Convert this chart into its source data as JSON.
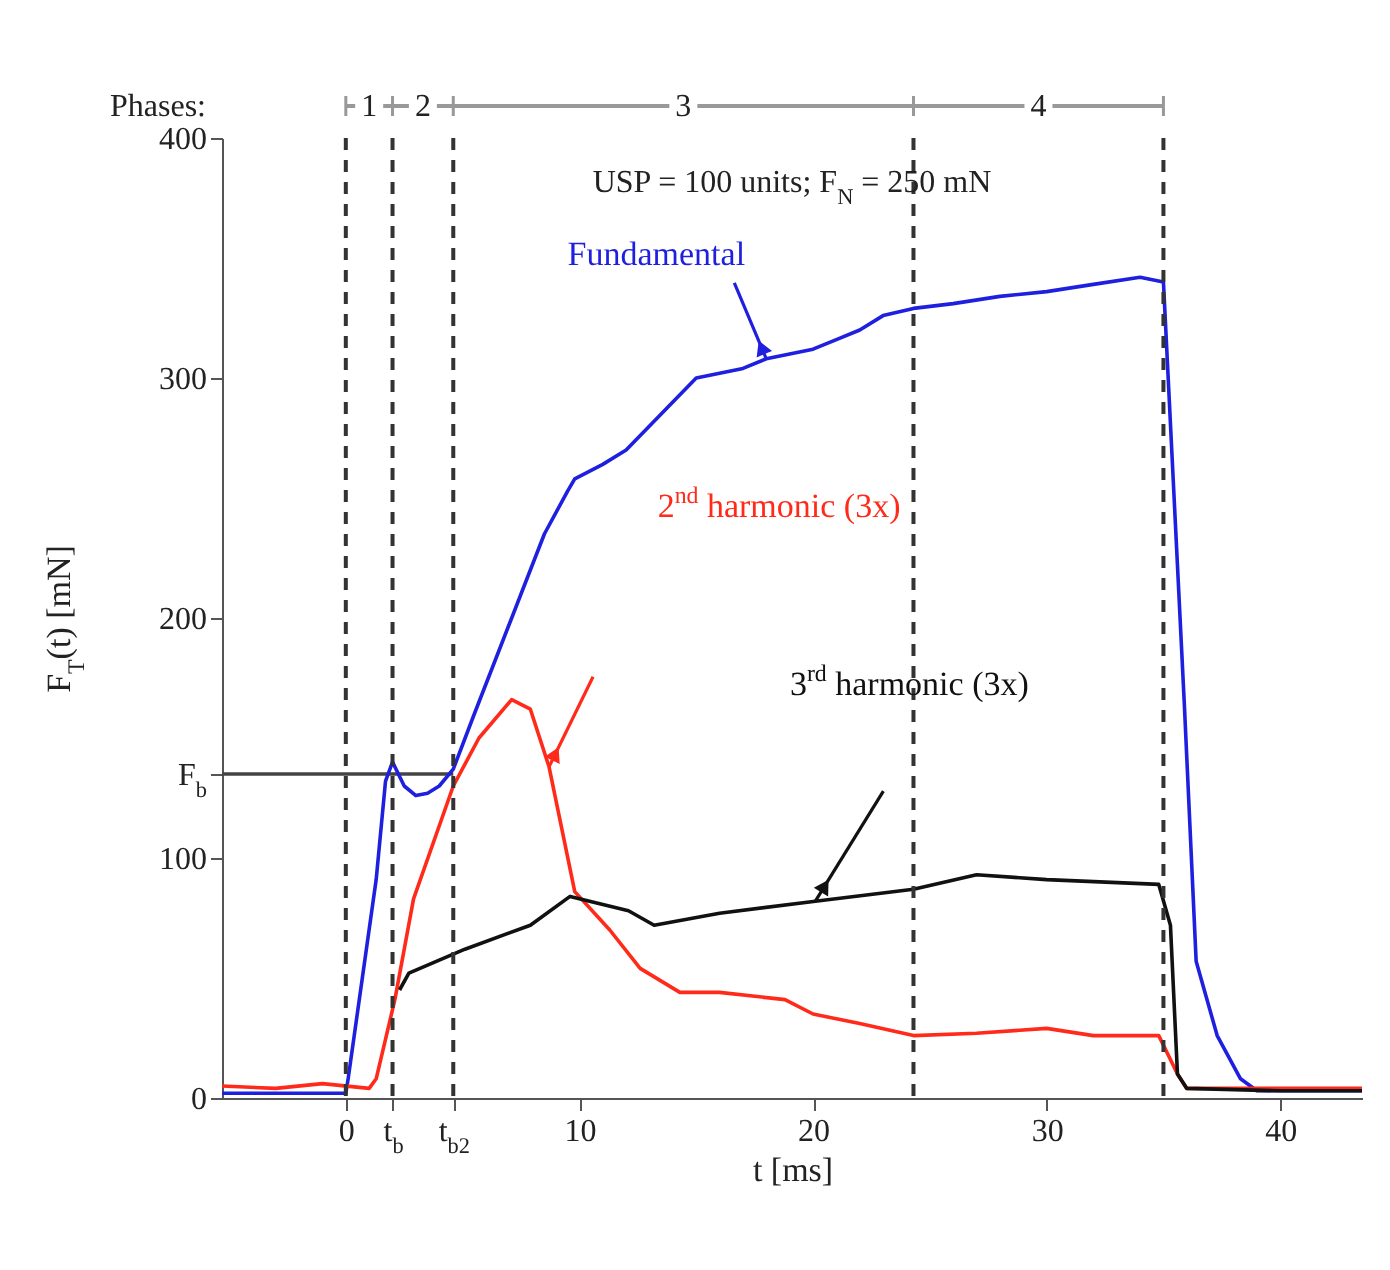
{
  "chart_data": {
    "type": "line",
    "xlabel": "t [ms]",
    "ylabel": "F$_{T}$(t) [mN]",
    "xlim": [
      -5.3,
      43.5
    ],
    "ylim": [
      0,
      400
    ],
    "xticks": [
      0,
      {
        "value": 2.0,
        "label": "t$_{b}$"
      },
      {
        "value": 4.6,
        "label": "t$_{b2}$"
      },
      10,
      20,
      30,
      40
    ],
    "yticks": [
      0,
      100,
      {
        "value": 135,
        "label": "F$_{b}$"
      },
      200,
      300,
      400
    ],
    "annotations": [
      "Phases:",
      "1",
      "2",
      "3",
      "4",
      "USP = 100 units; F$_{N}$ = 250 mN"
    ],
    "ref_lines": [
      {
        "axis": "x",
        "value": 0,
        "color": "#333333",
        "line_style": "dashed"
      },
      {
        "axis": "x",
        "value": 2.0,
        "color": "#333333",
        "line_style": "dashed"
      },
      {
        "axis": "x",
        "value": 4.6,
        "color": "#333333",
        "line_style": "dashed"
      },
      {
        "axis": "x",
        "value": 24.3,
        "color": "#333333",
        "line_style": "dashed"
      },
      {
        "axis": "x",
        "value": 35.0,
        "color": "#333333",
        "line_style": "dashed"
      }
    ],
    "series": [
      {
        "color": "#444444",
        "x": [
          -5.3,
          4.6
        ],
        "values": [
          135,
          135
        ]
      },
      {
        "name": "Fundamental",
        "color": "#1f1fe0",
        "x": [
          -5.3,
          0,
          0.1,
          1.3,
          1.7,
          2.0,
          2.5,
          3.0,
          3.5,
          4.0,
          4.6,
          5.5,
          6.5,
          7.5,
          8.5,
          9.5,
          9.8,
          11,
          12,
          13,
          14,
          15,
          16,
          17,
          18,
          19,
          20,
          21,
          22,
          23,
          24.3,
          26,
          28,
          30,
          32,
          34,
          35.0,
          35.9,
          36.4,
          37.3,
          38.3,
          39,
          43.5
        ],
        "values": [
          2,
          2,
          8,
          91,
          132,
          140,
          130,
          126,
          127,
          130,
          137,
          160,
          185,
          210,
          235,
          253,
          258,
          264,
          270,
          280,
          290,
          300,
          302,
          304,
          308,
          310,
          312,
          316,
          320,
          326,
          329,
          331,
          334,
          336,
          339,
          342,
          340,
          163,
          57,
          26,
          8,
          3,
          3
        ]
      },
      {
        "name": "2$^{nd}$ harmonic (3x)",
        "color": "#ff2a1a",
        "x": [
          -5.3,
          -3,
          -1,
          1.0,
          1.3,
          2.1,
          2.9,
          4.6,
          5.7,
          7.1,
          7.9,
          8.7,
          9.8,
          11.3,
          12.6,
          14.3,
          16,
          18.8,
          20,
          22,
          24.3,
          27,
          30,
          32,
          34.8,
          35.6,
          36,
          38,
          40,
          43.5
        ],
        "values": [
          5,
          4,
          6,
          4,
          8,
          41,
          83,
          130,
          150,
          166,
          162,
          138,
          86,
          70,
          54,
          44,
          44,
          41,
          35,
          31,
          26,
          27,
          29,
          26,
          26,
          10,
          4,
          4,
          4,
          4
        ]
      },
      {
        "name": "3$^{rd}$ harmonic (3x)",
        "color": "#111111",
        "x": [
          2.3,
          2.7,
          5.1,
          7.9,
          9.6,
          12.1,
          13.2,
          16,
          20.1,
          24.3,
          27,
          30,
          34.8,
          35.3,
          35.6,
          36,
          40,
          43.5
        ],
        "values": [
          45,
          52,
          62,
          72,
          84,
          78,
          72,
          77,
          82,
          87,
          93,
          91,
          89,
          72,
          10,
          4,
          3,
          3
        ]
      }
    ]
  }
}
